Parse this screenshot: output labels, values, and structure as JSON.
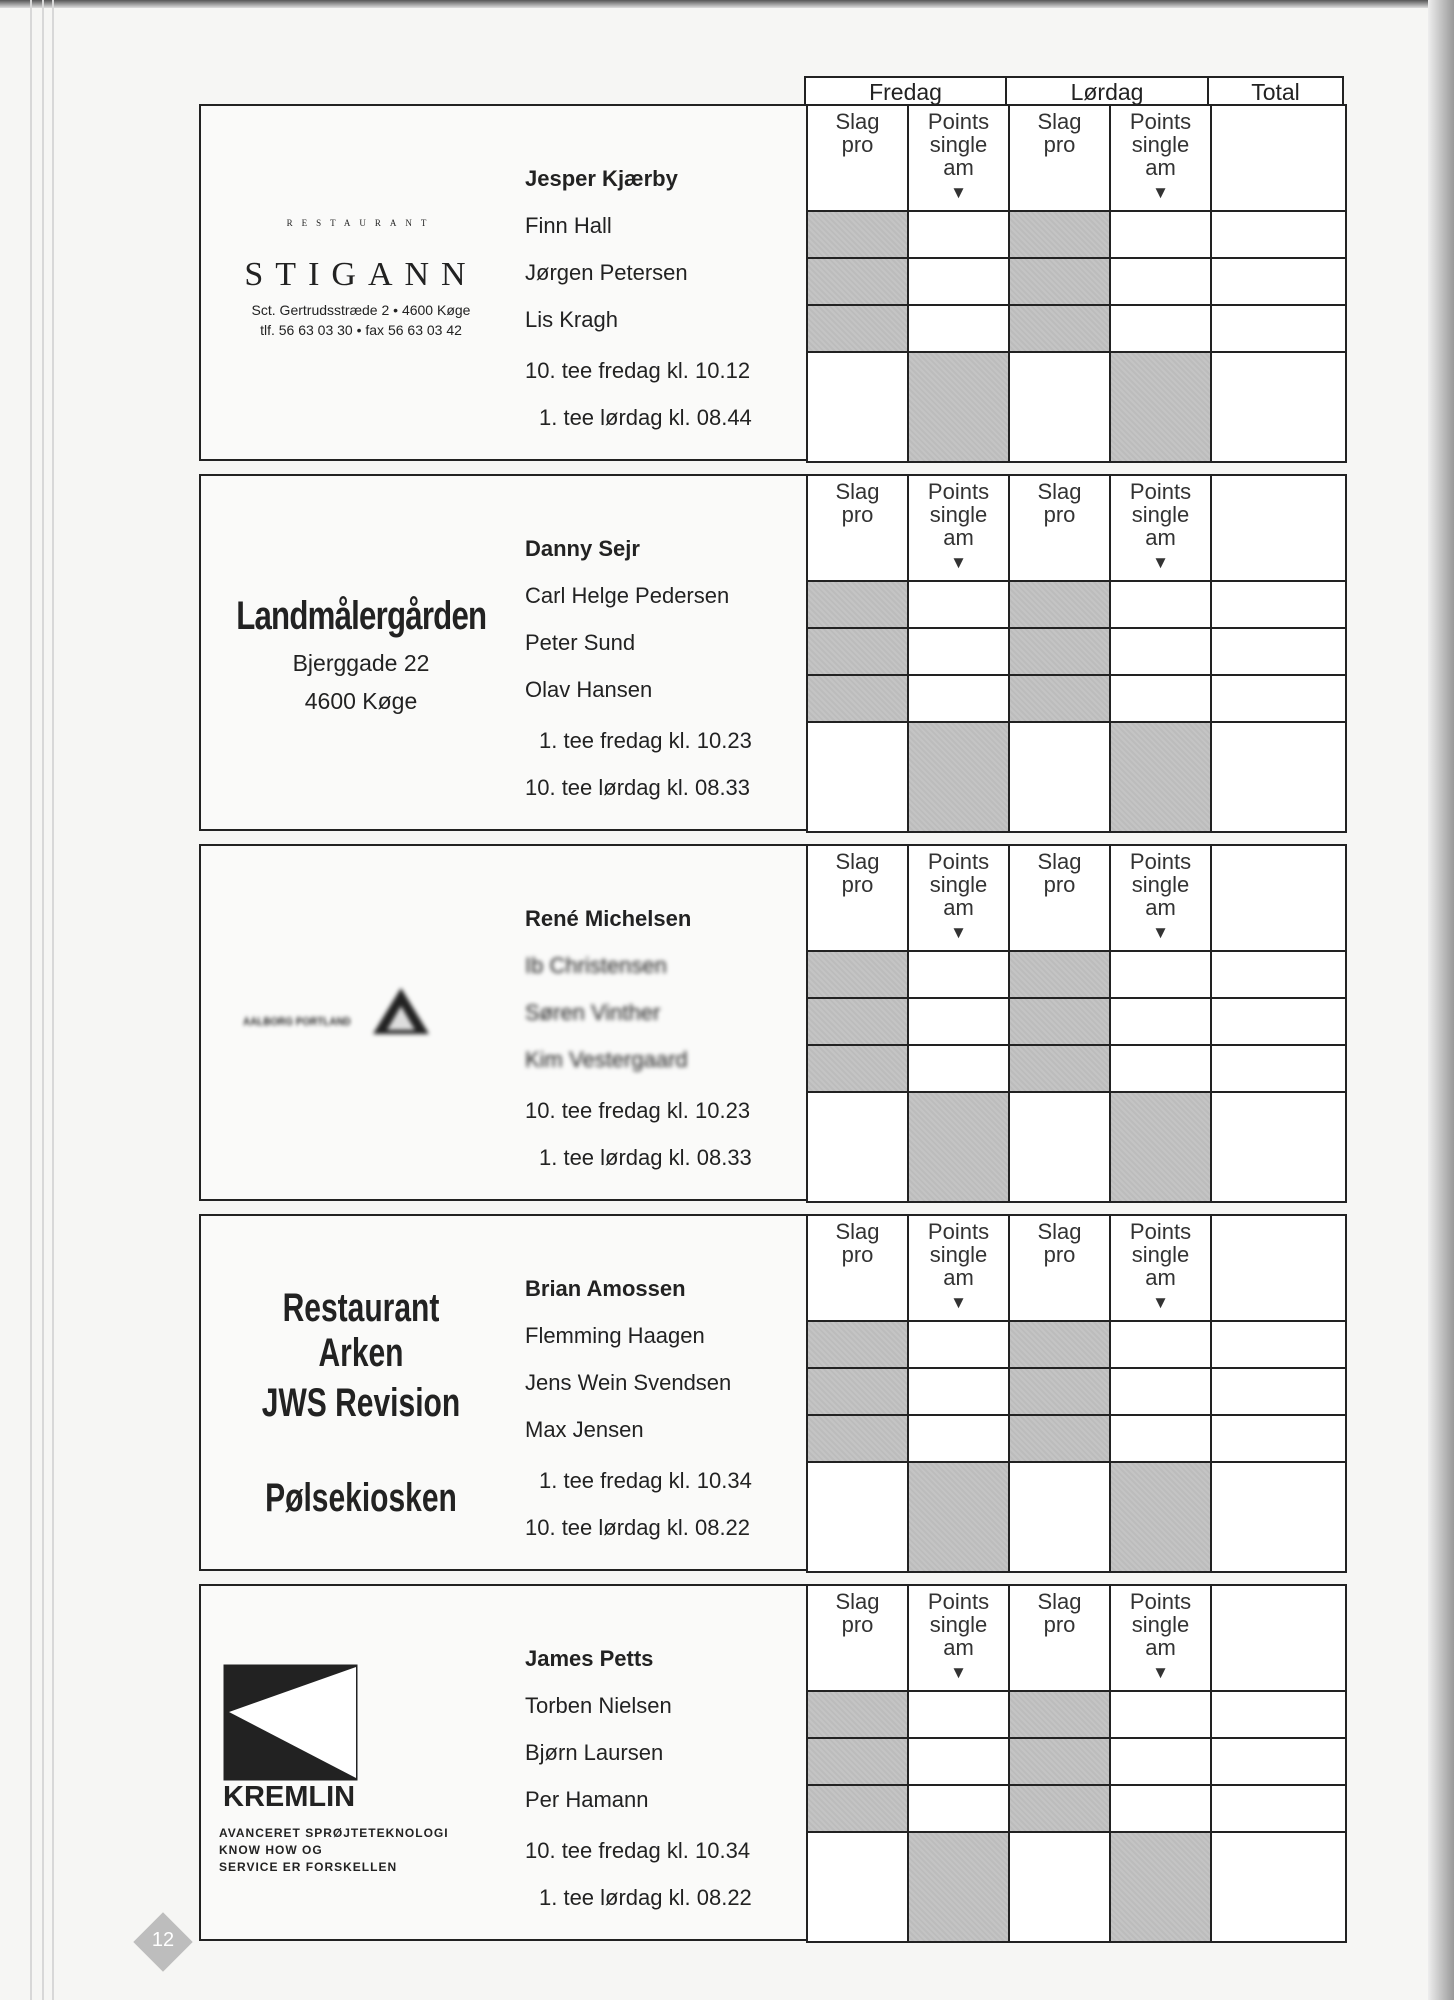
{
  "header": {
    "fredag": "Fredag",
    "lordag": "Lørdag",
    "total": "Total"
  },
  "columns": {
    "slag": "Slag pro",
    "points": "Points single am",
    "arrow": "▼"
  },
  "blocks": [
    {
      "logo": {
        "type": "stigann",
        "arc": "RESTAURANT",
        "name": "STIGANN",
        "address": "Sct. Gertrudsstræde 2 • 4600 Køge",
        "phone": "tlf. 56 63 03 30 • fax 56 63 03 42"
      },
      "captain": "Jesper Kjærby",
      "players": [
        "Finn Hall",
        "Jørgen Petersen",
        "Lis Kragh"
      ],
      "tee": [
        "10. tee fredag kl. 10.12",
        "1. tee lørdag kl. 08.44"
      ]
    },
    {
      "logo": {
        "type": "landmaler",
        "name": "Landmålergården",
        "street": "Bjerggade 22",
        "city": "4600 Køge"
      },
      "captain": "Danny Sejr",
      "players": [
        "Carl Helge Pedersen",
        "Peter Sund",
        "Olav Hansen"
      ],
      "tee": [
        "1. tee fredag kl. 10.23",
        "10. tee lørdag kl. 08.33"
      ]
    },
    {
      "logo": {
        "type": "aalborg",
        "name": "AALBORG PORTLAND"
      },
      "captain": "René Michelsen",
      "players": [
        "Ib Christensen",
        "Søren Vinther",
        "Kim Vestergaard"
      ],
      "tee": [
        "10. tee fredag kl. 10.23",
        "1. tee lørdag kl. 08.33"
      ]
    },
    {
      "logo": {
        "type": "sponsors",
        "lines": [
          "Restaurant Arken",
          "JWS Revision",
          "Pølsekiosken"
        ]
      },
      "captain": "Brian Amossen",
      "players": [
        "Flemming Haagen",
        "Jens Wein Svendsen",
        "Max Jensen"
      ],
      "tee": [
        "1. tee fredag kl. 10.34",
        "10. tee lørdag kl. 08.22"
      ]
    },
    {
      "logo": {
        "type": "kremlin",
        "name": "KREMLIN",
        "tagline": [
          "AVANCERET SPRØJTETEKNOLOGI",
          "KNOW HOW OG",
          "SERVICE ER FORSKELLEN"
        ]
      },
      "captain": "James Petts",
      "players": [
        "Torben Nielsen",
        "Bjørn Laursen",
        "Per Hamann"
      ],
      "tee": [
        "10. tee fredag kl. 10.34",
        "1. tee lørdag kl. 08.22"
      ]
    }
  ],
  "page_number": "12"
}
